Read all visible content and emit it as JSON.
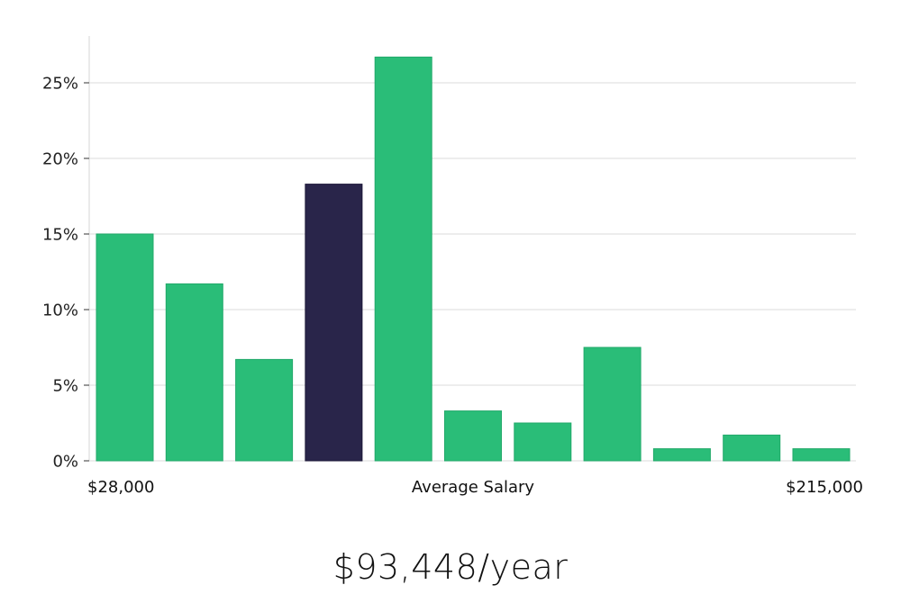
{
  "chart_data": {
    "type": "bar",
    "values": [
      15.0,
      11.7,
      6.7,
      18.3,
      26.7,
      3.3,
      2.5,
      7.5,
      0.8,
      1.7,
      0.8
    ],
    "highlight_index": 3,
    "ylim": [
      0,
      28
    ],
    "yticks": [
      0,
      5,
      10,
      15,
      20,
      25
    ],
    "ytick_labels": [
      "0%",
      "5%",
      "10%",
      "15%",
      "20%",
      "25%"
    ],
    "grid": true,
    "x_min_label": "$28,000",
    "x_center_label": "Average Salary",
    "x_max_label": "$215,000",
    "colors": {
      "bar": "#2abd78",
      "highlight": "#29254a",
      "grid": "#e2e2e2",
      "axis": "#d6d6d6"
    }
  },
  "summary": {
    "average_salary": "$93,448/year"
  }
}
